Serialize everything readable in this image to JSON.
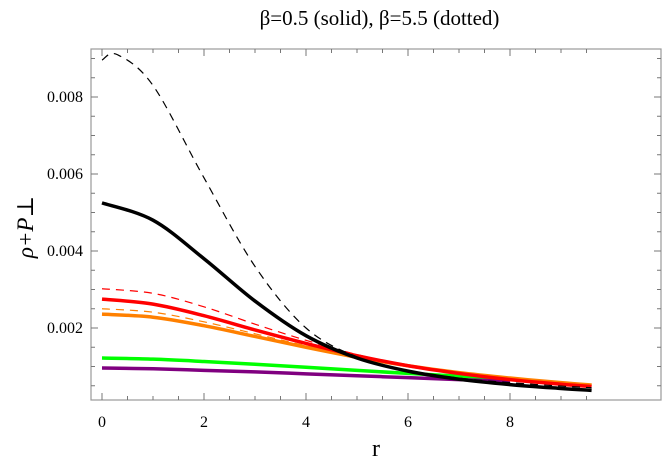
{
  "title": "β=0.5 (solid), β=5.5 (dotted)",
  "xlabel": "r",
  "ylabel": "ρ+P⊥",
  "chart_data": {
    "type": "line",
    "title": "β=0.5 (solid), β=5.5 (dotted)",
    "xlabel": "r",
    "ylabel": "ρ+P⊥",
    "xlim": [
      -0.2,
      9.8
    ],
    "ylim": [
      0.0001,
      0.0093
    ],
    "x_ticks": [
      0,
      2,
      4,
      6,
      8
    ],
    "y_ticks": [
      0.002,
      0.004,
      0.006,
      0.008
    ],
    "x_tick_labels": [
      "0",
      "2",
      "4",
      "6",
      "8"
    ],
    "y_tick_labels": [
      "0.002",
      "0.004",
      "0.006",
      "0.008"
    ],
    "grid": false,
    "legend": "none",
    "x": [
      0,
      1,
      2,
      3,
      4,
      5,
      6,
      7,
      8,
      9,
      9.6
    ],
    "series": [
      {
        "name": "black solid (β=0.5)",
        "color": "#000000",
        "style": "solid",
        "width": 3.5,
        "values": [
          0.00525,
          0.0048,
          0.0038,
          0.0027,
          0.0018,
          0.00122,
          0.00088,
          0.00067,
          0.00053,
          0.00043,
          0.00038
        ]
      },
      {
        "name": "black dotted (β=5.5)",
        "color": "#000000",
        "style": "dashed",
        "width": 1.2,
        "values": [
          0.00896,
          0.0083,
          0.0059,
          0.0036,
          0.002,
          0.00125,
          0.0009,
          0.0007,
          0.00058,
          0.00049,
          0.00045
        ]
      },
      {
        "name": "red solid (β=0.5)",
        "color": "#ff0000",
        "style": "solid",
        "width": 3.5,
        "values": [
          0.00275,
          0.00262,
          0.00232,
          0.00195,
          0.0016,
          0.00128,
          0.00102,
          0.00082,
          0.00066,
          0.00054,
          0.00048
        ]
      },
      {
        "name": "red dotted (β=5.5)",
        "color": "#ff0000",
        "style": "dashed",
        "width": 1.2,
        "values": [
          0.00302,
          0.0029,
          0.00255,
          0.0021,
          0.00168,
          0.00131,
          0.00103,
          0.00082,
          0.00066,
          0.00054,
          0.00048
        ]
      },
      {
        "name": "orange solid (β=0.5)",
        "color": "#ff8000",
        "style": "solid",
        "width": 3.5,
        "values": [
          0.00236,
          0.00228,
          0.00206,
          0.00178,
          0.0015,
          0.00124,
          0.00102,
          0.00084,
          0.0007,
          0.00058,
          0.00052
        ]
      },
      {
        "name": "orange dotted (β=5.5)",
        "color": "#ff8000",
        "style": "dashed",
        "width": 1.2,
        "values": [
          0.0025,
          0.00241,
          0.00216,
          0.00185,
          0.00154,
          0.00126,
          0.00103,
          0.00084,
          0.0007,
          0.00058,
          0.00052
        ]
      },
      {
        "name": "green solid (β=0.5)",
        "color": "#00ff00",
        "style": "solid",
        "width": 3.5,
        "values": [
          0.00122,
          0.00119,
          0.00113,
          0.00106,
          0.00098,
          0.0009,
          0.00082,
          0.00075,
          0.00068,
          null,
          null
        ]
      },
      {
        "name": "purple solid (β=0.5)",
        "color": "#800080",
        "style": "solid",
        "width": 3.5,
        "values": [
          0.00096,
          0.00094,
          0.0009,
          0.00086,
          0.00081,
          0.00076,
          0.00071,
          0.00066,
          0.00061,
          null,
          null
        ]
      }
    ]
  }
}
